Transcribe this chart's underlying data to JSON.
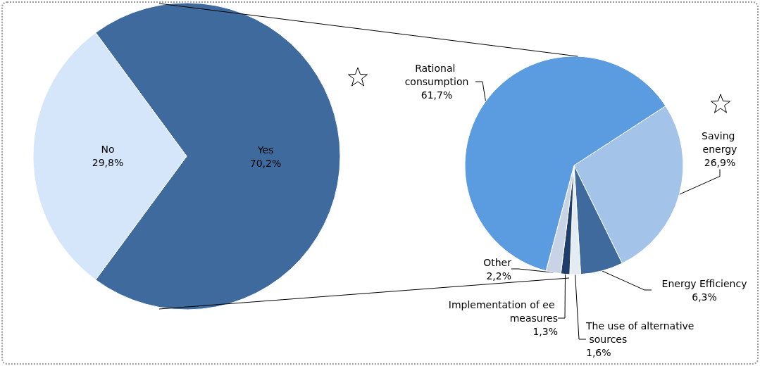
{
  "chart_data": [
    {
      "type": "pie",
      "categories": [
        "Yes",
        "No"
      ],
      "values": [
        70.2,
        29.8
      ],
      "colors": [
        "#3f6a9e",
        "#d6e6fa"
      ],
      "value_labels": [
        "70,2%",
        "29,8%"
      ]
    },
    {
      "type": "pie",
      "categories": [
        "Saving energy",
        "Energy Efficiency",
        "The use of alternative sources",
        "Implementation of ee measures",
        "Other",
        "Rational consumption"
      ],
      "values": [
        26.9,
        6.3,
        1.6,
        1.3,
        2.2,
        61.7
      ],
      "colors": [
        "#a3c3e8",
        "#3f6a9e",
        "#e4ebf3",
        "#1f3f6a",
        "#c8d4e6",
        "#5b9be0"
      ],
      "value_labels": [
        "26,9%",
        "6,3%",
        "1,6%",
        "1,3%",
        "2,2%",
        "61,7%"
      ]
    }
  ]
}
